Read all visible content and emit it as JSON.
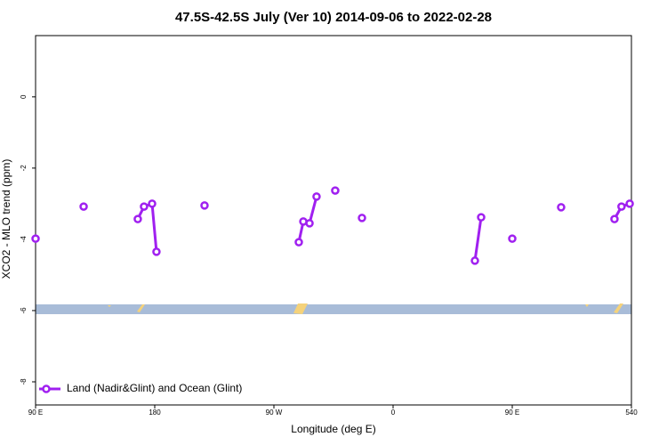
{
  "chart_data": {
    "type": "line",
    "title": "47.5S-42.5S July (Ver 10)   2014-09-06 to 2022-02-28",
    "xlabel": "Longitude (deg E)",
    "ylabel": "XCO2 - MLO trend (ppm)",
    "xlim": [
      90,
      540
    ],
    "ylim": [
      -8.65,
      1.72
    ],
    "xticks": [
      {
        "value": 90,
        "label": "90 E"
      },
      180,
      {
        "value": 270,
        "label": "90 W"
      },
      {
        "value": 360,
        "label": "0"
      },
      {
        "value": 450,
        "label": "90 E"
      },
      540
    ],
    "yticks": [
      0,
      -2,
      -4,
      -6,
      -8
    ],
    "legend": "bottom-left",
    "series": [
      {
        "name": "Land (Nadir&Glint) and Ocean (Glint)",
        "color": "#a020f0",
        "x": [
          90,
          null,
          126.3,
          null,
          167.2,
          171.9,
          178,
          181.3,
          null,
          217.6,
          null,
          288.8,
          292.2,
          296.9,
          302.2,
          null,
          316.3,
          null,
          336.5,
          null,
          421.8,
          426.5,
          null,
          450,
          null,
          486.9,
          null,
          527.2,
          532.5,
          538.7
        ],
        "values": [
          -3.98,
          null,
          -3.08,
          null,
          -3.43,
          -3.08,
          -3.0,
          -4.35,
          null,
          -3.05,
          null,
          -4.08,
          -3.5,
          -3.55,
          -2.8,
          null,
          -2.63,
          null,
          -3.4,
          null,
          -4.6,
          -3.38,
          null,
          -3.98,
          null,
          -3.1,
          null,
          -3.43,
          -3.08,
          -3.0
        ]
      }
    ]
  }
}
